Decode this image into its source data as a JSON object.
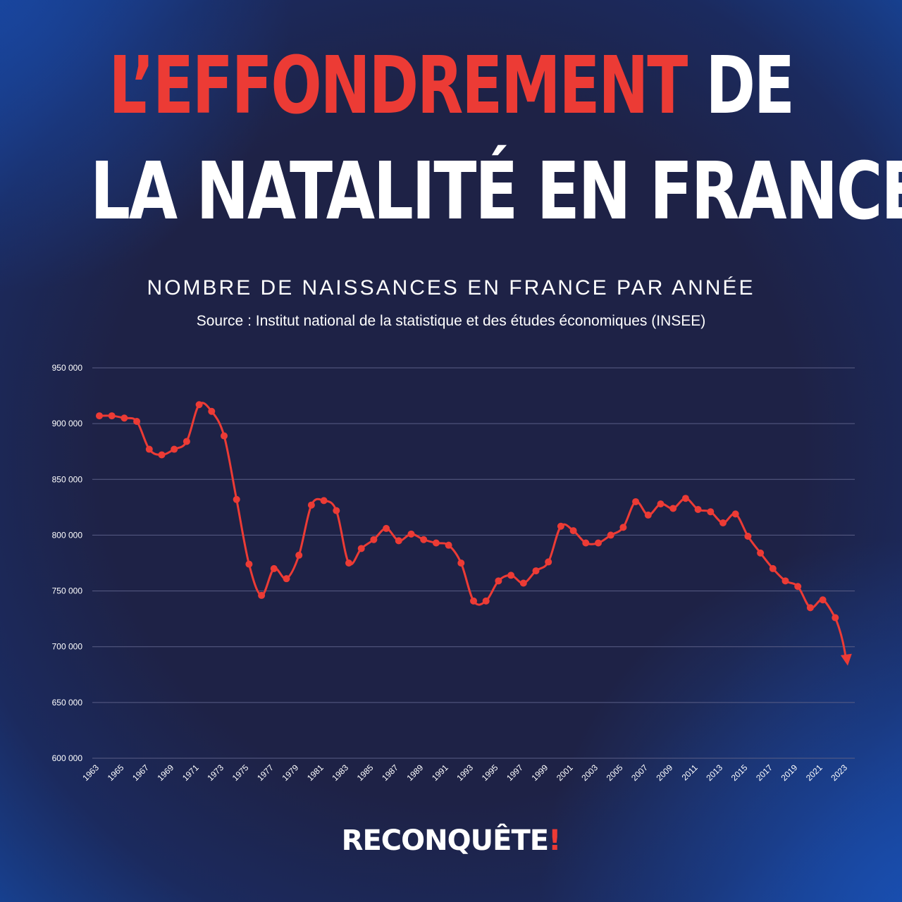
{
  "header": {
    "title_red": "L’EFFONDREMENT",
    "title_rest_1": " DE",
    "title_line_2": "LA NATALITÉ EN FRANCE",
    "subtitle": "NOMBRE DE NAISSANCES EN FRANCE PAR ANNÉE",
    "source": "Source : Institut national de la statistique et des études économiques (INSEE)"
  },
  "logo": {
    "text": "RECONQUÊTE",
    "mark": "!"
  },
  "colors": {
    "line": "#ec3b35",
    "grid": "#5a5e86",
    "text": "#ffffff",
    "background": "#1e2246"
  },
  "chart_data": {
    "type": "line",
    "title": "NOMBRE DE NAISSANCES EN FRANCE PAR ANNÉE",
    "xlabel": "",
    "ylabel": "",
    "ylim": [
      600000,
      950000
    ],
    "yticks": [
      600000,
      650000,
      700000,
      750000,
      800000,
      850000,
      900000,
      950000
    ],
    "ytick_labels": [
      "600 000",
      "650 000",
      "700 000",
      "750 000",
      "800 000",
      "850 000",
      "900 000",
      "950 000"
    ],
    "xtick_labels": [
      "1963",
      "1965",
      "1967",
      "1969",
      "1971",
      "1973",
      "1975",
      "1977",
      "1979",
      "1981",
      "1983",
      "1985",
      "1987",
      "1989",
      "1991",
      "1993",
      "1995",
      "1997",
      "1999",
      "2001",
      "2003",
      "2005",
      "2007",
      "2009",
      "2011",
      "2013",
      "2015",
      "2017",
      "2019",
      "2021",
      "2023"
    ],
    "grid": true,
    "trend_arrow": {
      "from_year": 2022,
      "to_year": 2023,
      "to_value": 683000
    },
    "series": [
      {
        "x": [
          1963,
          1964,
          1965,
          1966,
          1967,
          1968,
          1969,
          1970,
          1971,
          1972,
          1973,
          1974,
          1975,
          1976,
          1977,
          1978,
          1979,
          1980,
          1981,
          1982,
          1983,
          1984,
          1985,
          1986,
          1987,
          1988,
          1989,
          1990,
          1991,
          1992,
          1993,
          1994,
          1995,
          1996,
          1997,
          1998,
          1999,
          2000,
          2001,
          2002,
          2003,
          2004,
          2005,
          2006,
          2007,
          2008,
          2009,
          2010,
          2011,
          2012,
          2013,
          2014,
          2015,
          2016,
          2017,
          2018,
          2019,
          2020,
          2021,
          2022
        ],
        "values": [
          907000,
          907000,
          905000,
          902000,
          877000,
          872000,
          877000,
          884000,
          917000,
          911000,
          889000,
          832000,
          774000,
          746000,
          770000,
          761000,
          782000,
          827000,
          831000,
          822000,
          775000,
          788000,
          796000,
          806000,
          795000,
          801000,
          796000,
          793000,
          791000,
          775000,
          741000,
          741000,
          759000,
          764000,
          757000,
          768000,
          776000,
          808000,
          804000,
          793000,
          793000,
          800000,
          807000,
          830000,
          818000,
          828000,
          824000,
          833000,
          823000,
          821000,
          811000,
          819000,
          799000,
          784000,
          770000,
          759000,
          754000,
          735000,
          742000,
          726000
        ]
      }
    ]
  }
}
